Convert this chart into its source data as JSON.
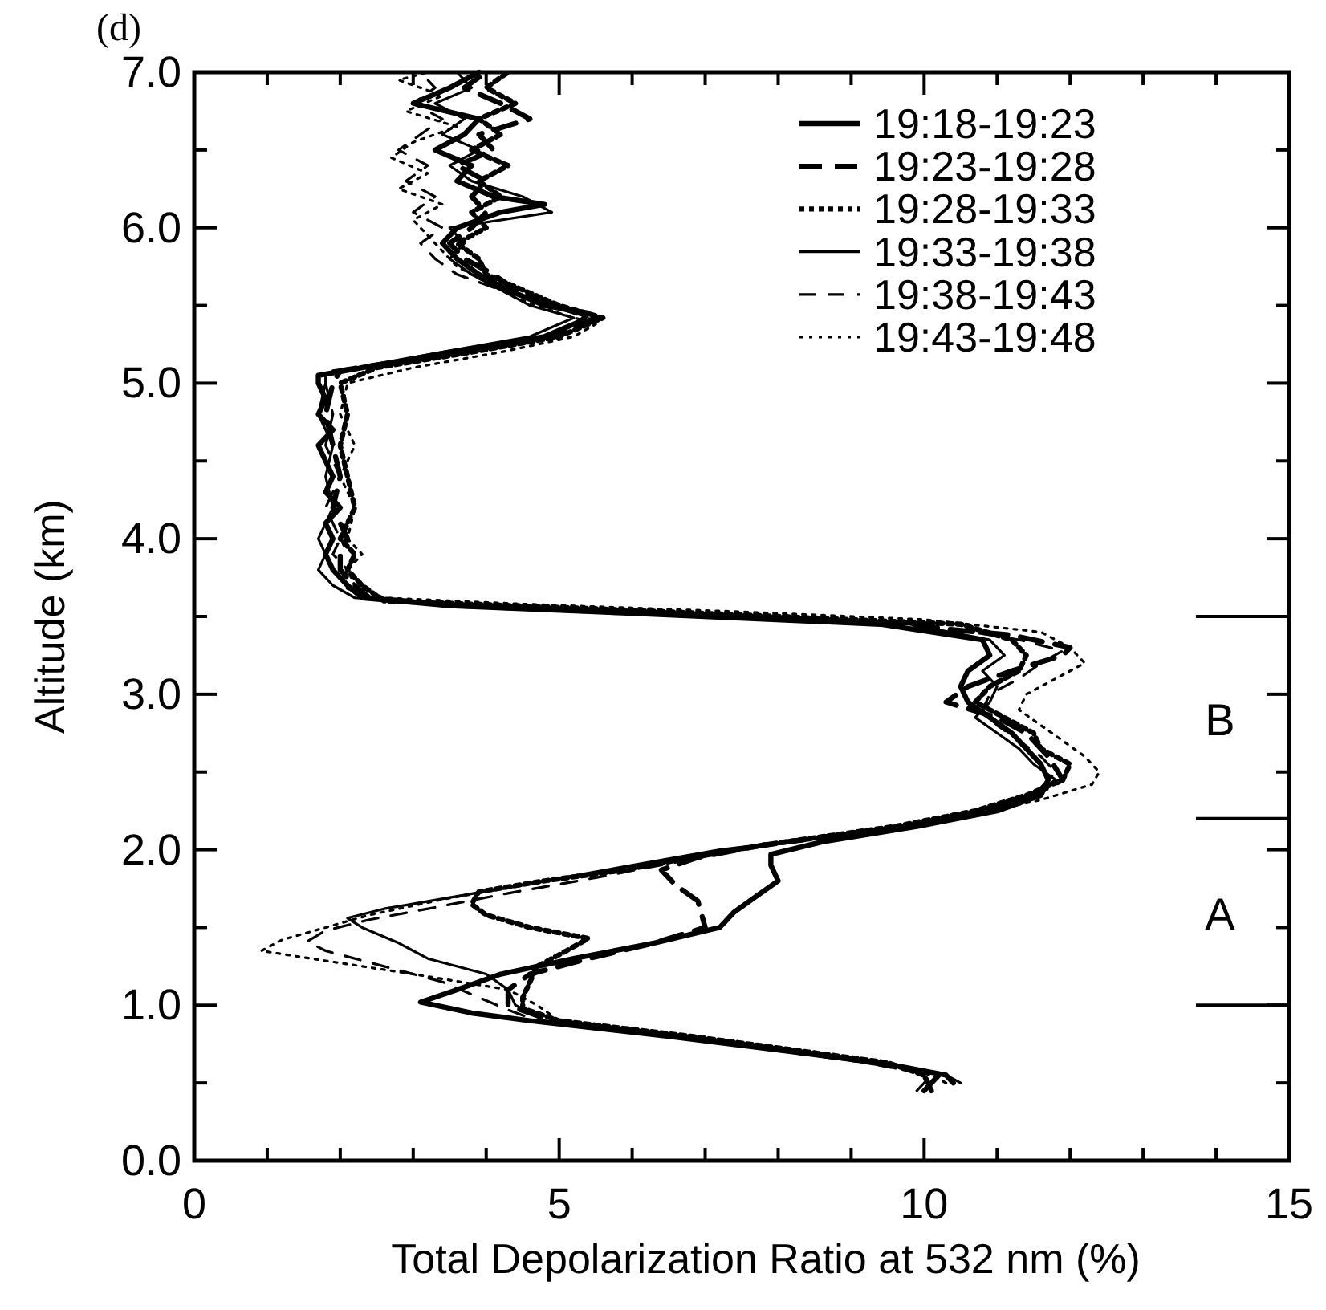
{
  "chart_data": {
    "type": "line",
    "xlabel": "Total Depolarization Ratio at 532 nm (%)",
    "ylabel": "Altitude (km)",
    "annotations": [
      "(d)",
      "A",
      "B"
    ],
    "xlim": [
      0,
      15
    ],
    "ylim": [
      0,
      7
    ],
    "xticks": [
      0,
      {
        "value": 1,
        "label": null
      },
      {
        "value": 2,
        "label": null
      },
      {
        "value": 3,
        "label": null
      },
      {
        "value": 4,
        "label": null
      },
      5,
      {
        "value": 6,
        "label": null
      },
      {
        "value": 7,
        "label": null
      },
      {
        "value": 8,
        "label": null
      },
      {
        "value": 9,
        "label": null
      },
      10,
      {
        "value": 11,
        "label": null
      },
      {
        "value": 12,
        "label": null
      },
      {
        "value": 13,
        "label": null
      },
      {
        "value": 14,
        "label": null
      },
      15
    ],
    "yticks": [
      {
        "value": 0,
        "label": "0.0"
      },
      {
        "value": 0.5,
        "label": null
      },
      {
        "value": 1,
        "label": "1.0"
      },
      {
        "value": 1.5,
        "label": null
      },
      {
        "value": 2,
        "label": "2.0"
      },
      {
        "value": 2.5,
        "label": null
      },
      {
        "value": 3,
        "label": "3.0"
      },
      {
        "value": 3.5,
        "label": null
      },
      {
        "value": 4,
        "label": "4.0"
      },
      {
        "value": 4.5,
        "label": null
      },
      {
        "value": 5,
        "label": "5.0"
      },
      {
        "value": 5.5,
        "label": null
      },
      {
        "value": 6,
        "label": "6.0"
      },
      {
        "value": 6.5,
        "label": null
      },
      {
        "value": 7,
        "label": "7.0"
      }
    ],
    "grid": false,
    "legend": "top right",
    "marker": "none",
    "ref_lines": [
      {
        "axis": "y",
        "value": 1.0,
        "color": "#000000"
      },
      {
        "axis": "y",
        "value": 2.2,
        "color": "#000000"
      },
      {
        "axis": "y",
        "value": 3.5,
        "color": "#000000"
      }
    ],
    "series": [
      {
        "name": "19:18-19:23",
        "color": "#000000",
        "line_style": "solid",
        "x": [
          10.4,
          10.3,
          9.4,
          8.2,
          6.5,
          4.6,
          3.8,
          3.1,
          3.6,
          4.2,
          5.2,
          6.3,
          7.2,
          7.4,
          7.7,
          8.0,
          7.9,
          7.9,
          8.6,
          9.9,
          11.0,
          11.6,
          11.7,
          11.6,
          11.4,
          11.2,
          10.9,
          10.6,
          10.5,
          10.6,
          10.9,
          10.8,
          9.4,
          6.0,
          3.5,
          2.3,
          2.1,
          1.9,
          1.8,
          1.9,
          1.8,
          2.0,
          1.8,
          1.9,
          1.8,
          1.7,
          1.9,
          1.7,
          1.8,
          1.7,
          1.7,
          2.3,
          3.5,
          4.8,
          5.3,
          5.4,
          4.8,
          4.3,
          3.9,
          3.6,
          3.4,
          3.6,
          4.2,
          4.8,
          4.1,
          3.6,
          3.8,
          3.3,
          3.7,
          3.9,
          3.0,
          3.5,
          3.9
        ],
        "values": [
          0.5,
          0.55,
          0.63,
          0.7,
          0.8,
          0.9,
          0.95,
          1.02,
          1.1,
          1.2,
          1.3,
          1.4,
          1.5,
          1.6,
          1.7,
          1.8,
          1.9,
          1.97,
          2.05,
          2.15,
          2.25,
          2.35,
          2.45,
          2.55,
          2.65,
          2.75,
          2.85,
          2.95,
          3.05,
          3.15,
          3.25,
          3.35,
          3.45,
          3.52,
          3.57,
          3.62,
          3.7,
          3.8,
          3.9,
          4.0,
          4.1,
          4.2,
          4.3,
          4.4,
          4.5,
          4.6,
          4.7,
          4.8,
          4.9,
          5.0,
          5.05,
          5.1,
          5.2,
          5.3,
          5.4,
          5.45,
          5.5,
          5.6,
          5.7,
          5.8,
          5.9,
          6.0,
          6.1,
          6.15,
          6.2,
          6.3,
          6.4,
          6.5,
          6.6,
          6.7,
          6.8,
          6.9,
          7.0
        ]
      },
      {
        "name": "19:23-19:28",
        "color": "#000000",
        "line_style": "dashed",
        "x": [
          10.0,
          10.2,
          9.3,
          8.3,
          6.6,
          4.9,
          4.3,
          4.3,
          4.6,
          5.4,
          6.3,
          7.0,
          6.9,
          6.6,
          6.4,
          6.9,
          7.8,
          9.7,
          10.8,
          11.5,
          11.9,
          11.7,
          11.4,
          11.0,
          10.3,
          10.6,
          11.2,
          11.9,
          12.0,
          11.2,
          9.6,
          6.2,
          3.6,
          2.4,
          2.2,
          2.0,
          2.0,
          2.1,
          1.9,
          2.0,
          1.9,
          1.8,
          1.9,
          2.0,
          3.6,
          4.9,
          5.5,
          4.9,
          4.4,
          4.1,
          3.7,
          3.5,
          3.8,
          4.0,
          3.8,
          4.0,
          3.6,
          4.1,
          3.9,
          4.6,
          4.2,
          3.7,
          4.0
        ],
        "values": [
          0.45,
          0.55,
          0.63,
          0.7,
          0.8,
          0.9,
          1.0,
          1.1,
          1.2,
          1.3,
          1.4,
          1.5,
          1.67,
          1.77,
          1.87,
          1.95,
          2.03,
          2.15,
          2.25,
          2.35,
          2.45,
          2.6,
          2.75,
          2.85,
          2.95,
          3.05,
          3.15,
          3.25,
          3.3,
          3.38,
          3.45,
          3.52,
          3.57,
          3.62,
          3.7,
          3.8,
          3.9,
          4.0,
          4.2,
          4.4,
          4.6,
          4.8,
          5.0,
          5.08,
          5.2,
          5.3,
          5.42,
          5.5,
          5.6,
          5.7,
          5.8,
          5.9,
          6.0,
          6.1,
          6.2,
          6.3,
          6.4,
          6.5,
          6.6,
          6.7,
          6.8,
          6.9,
          7.0
        ]
      },
      {
        "name": "19:28-19:33",
        "color": "#000000",
        "line_style": "dotted",
        "x": [
          10.1,
          10.0,
          9.5,
          8.4,
          6.8,
          5.0,
          4.5,
          4.5,
          4.6,
          4.7,
          5.1,
          5.4,
          4.6,
          4.0,
          3.8,
          3.9,
          4.8,
          5.9,
          6.8,
          7.8,
          9.6,
          10.7,
          11.4,
          11.9,
          12.0,
          11.6,
          11.5,
          11.1,
          10.7,
          10.9,
          11.3,
          11.4,
          11.2,
          10.5,
          8.0,
          5.5,
          2.6,
          2.3,
          2.1,
          2.2,
          2.0,
          2.2,
          2.1,
          2.0,
          2.1,
          2.0,
          2.5,
          3.8,
          5.0,
          5.6,
          5.0,
          4.5,
          4.0,
          3.9,
          3.6,
          4.0,
          3.8,
          4.2,
          3.9,
          4.3,
          3.8,
          4.2,
          3.9,
          4.4,
          4.0,
          4.3
        ],
        "values": [
          0.45,
          0.55,
          0.63,
          0.7,
          0.8,
          0.9,
          0.98,
          1.05,
          1.15,
          1.25,
          1.35,
          1.43,
          1.5,
          1.58,
          1.65,
          1.73,
          1.8,
          1.87,
          1.95,
          2.03,
          2.15,
          2.25,
          2.35,
          2.45,
          2.55,
          2.65,
          2.75,
          2.85,
          2.95,
          3.05,
          3.15,
          3.25,
          3.35,
          3.45,
          3.5,
          3.55,
          3.6,
          3.7,
          3.8,
          3.9,
          4.0,
          4.2,
          4.4,
          4.6,
          4.8,
          5.0,
          5.1,
          5.2,
          5.3,
          5.42,
          5.5,
          5.6,
          5.7,
          5.8,
          5.9,
          6.0,
          6.1,
          6.2,
          6.3,
          6.4,
          6.5,
          6.6,
          6.7,
          6.8,
          6.9,
          7.0
        ]
      },
      {
        "name": "19:33-19:38",
        "color": "#000000",
        "line_style": "solid",
        "x": [
          10.5,
          10.3,
          9.3,
          8.2,
          6.6,
          4.8,
          4.4,
          4.3,
          4.0,
          3.2,
          2.8,
          2.3,
          2.1,
          2.6,
          3.6,
          4.8,
          6.0,
          7.2,
          8.1,
          9.8,
          10.9,
          11.5,
          11.8,
          11.5,
          11.3,
          11.0,
          10.7,
          10.9,
          11.0,
          10.8,
          11.1,
          10.9,
          9.8,
          6.5,
          3.8,
          2.2,
          1.9,
          1.7,
          1.8,
          1.7,
          1.9,
          1.8,
          1.9,
          1.7,
          1.8,
          1.8,
          3.4,
          4.6,
          5.2,
          4.6,
          4.2,
          3.8,
          3.5,
          3.7,
          3.5,
          4.9,
          4.5,
          3.8,
          3.5,
          3.9,
          3.4,
          3.7,
          3.3,
          3.8,
          3.6
        ],
        "values": [
          0.5,
          0.55,
          0.63,
          0.7,
          0.8,
          0.9,
          1.0,
          1.1,
          1.2,
          1.3,
          1.4,
          1.5,
          1.56,
          1.62,
          1.7,
          1.8,
          1.9,
          2.0,
          2.05,
          2.15,
          2.25,
          2.35,
          2.45,
          2.55,
          2.65,
          2.75,
          2.85,
          2.95,
          3.05,
          3.15,
          3.25,
          3.35,
          3.45,
          3.52,
          3.57,
          3.62,
          3.7,
          3.8,
          3.9,
          4.0,
          4.2,
          4.4,
          4.6,
          4.8,
          5.0,
          5.06,
          5.2,
          5.3,
          5.42,
          5.5,
          5.6,
          5.7,
          5.8,
          5.9,
          6.0,
          6.1,
          6.2,
          6.3,
          6.4,
          6.5,
          6.6,
          6.7,
          6.8,
          6.9,
          7.0
        ]
      },
      {
        "name": "19:38-19:43",
        "color": "#000000",
        "line_style": "dashed",
        "x": [
          9.9,
          10.1,
          9.2,
          8.1,
          6.5,
          4.7,
          4.3,
          3.9,
          3.4,
          2.6,
          1.8,
          1.55,
          1.8,
          2.4,
          3.2,
          4.3,
          5.5,
          6.6,
          7.5,
          9.0,
          10.4,
          11.2,
          11.6,
          11.8,
          11.6,
          11.3,
          11.0,
          10.8,
          10.9,
          11.3,
          11.6,
          11.9,
          11.3,
          10.0,
          6.8,
          4.0,
          2.4,
          2.0,
          2.1,
          1.9,
          2.0,
          1.8,
          2.0,
          1.8,
          1.9,
          1.8,
          1.9,
          3.6,
          5.0,
          5.5,
          4.9,
          4.2,
          3.6,
          3.3,
          3.1,
          3.4,
          3.0,
          3.3,
          2.9,
          3.2,
          2.8,
          3.1,
          3.4,
          3.0,
          3.3,
          3.1
        ],
        "values": [
          0.45,
          0.55,
          0.63,
          0.7,
          0.8,
          0.9,
          0.97,
          1.05,
          1.15,
          1.25,
          1.35,
          1.41,
          1.48,
          1.55,
          1.62,
          1.72,
          1.82,
          1.92,
          2.0,
          2.1,
          2.2,
          2.3,
          2.4,
          2.5,
          2.6,
          2.7,
          2.8,
          2.9,
          3.0,
          3.1,
          3.2,
          3.28,
          3.35,
          3.45,
          3.52,
          3.57,
          3.62,
          3.7,
          3.8,
          3.9,
          4.0,
          4.2,
          4.4,
          4.6,
          4.8,
          5.0,
          5.08,
          5.2,
          5.3,
          5.4,
          5.5,
          5.6,
          5.7,
          5.8,
          5.9,
          6.0,
          6.1,
          6.2,
          6.3,
          6.4,
          6.5,
          6.6,
          6.7,
          6.8,
          6.9,
          7.0
        ]
      },
      {
        "name": "19:43-19:48",
        "color": "#000000",
        "line_style": "dotted",
        "x": [
          10.3,
          10.1,
          9.4,
          8.3,
          6.7,
          5.0,
          4.7,
          4.3,
          3.0,
          1.6,
          0.92,
          1.2,
          1.8,
          2.4,
          3.4,
          4.6,
          5.8,
          7.0,
          7.9,
          9.4,
          10.6,
          11.6,
          12.3,
          12.4,
          12.2,
          11.9,
          11.6,
          11.3,
          11.4,
          11.8,
          12.2,
          12.0,
          11.6,
          10.0,
          7.5,
          4.5,
          2.6,
          2.2,
          2.1,
          2.3,
          2.1,
          2.2,
          2.0,
          2.2,
          2.0,
          2.1,
          3.0,
          4.2,
          5.2,
          5.5,
          5.0,
          4.4,
          4.0,
          3.6,
          3.4,
          3.2,
          3.0,
          3.4,
          2.8,
          3.2,
          2.7,
          3.0,
          3.6,
          2.9,
          3.4,
          2.8,
          3.2
        ],
        "values": [
          0.5,
          0.55,
          0.63,
          0.7,
          0.8,
          0.9,
          1.0,
          1.1,
          1.2,
          1.3,
          1.35,
          1.42,
          1.5,
          1.58,
          1.68,
          1.78,
          1.88,
          1.97,
          2.03,
          2.12,
          2.22,
          2.32,
          2.42,
          2.5,
          2.6,
          2.7,
          2.8,
          2.9,
          3.0,
          3.1,
          3.2,
          3.3,
          3.4,
          3.48,
          3.53,
          3.58,
          3.62,
          3.7,
          3.8,
          3.9,
          4.0,
          4.2,
          4.4,
          4.6,
          4.8,
          5.0,
          5.1,
          5.2,
          5.3,
          5.38,
          5.45,
          5.55,
          5.65,
          5.75,
          5.85,
          5.95,
          6.05,
          6.15,
          6.25,
          6.35,
          6.45,
          6.55,
          6.65,
          6.75,
          6.85,
          6.95,
          7.0
        ]
      }
    ]
  }
}
